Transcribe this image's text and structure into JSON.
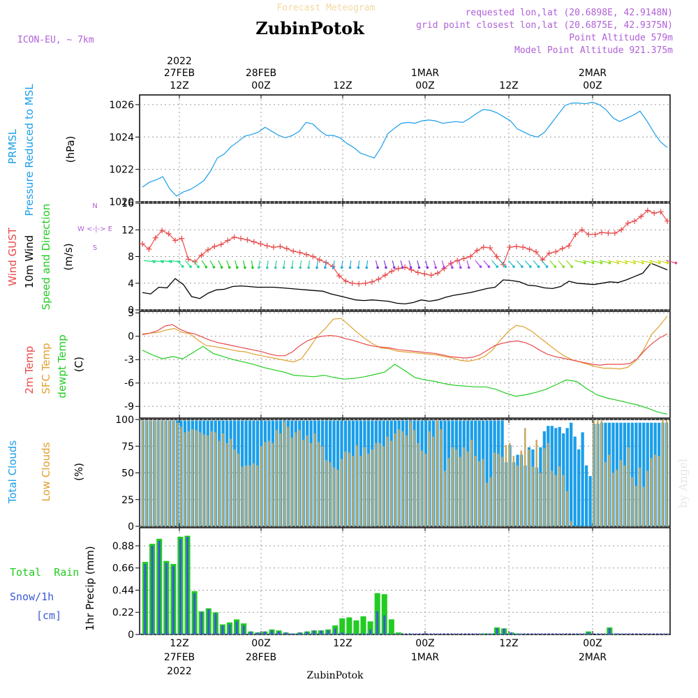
{
  "header": {
    "title_top": "Forecast Meteogram",
    "station": "ZubinPotok",
    "model": "ICON-EU, ~ 7km",
    "requested": "requested lon,lat (20.6898E, 42.9148N)",
    "closest": "grid point closest lon,lat (20.6875E, 42.9375N)",
    "point_alt": "Point Altitude 579m",
    "model_alt": "Model Point Altitude 921.375m",
    "footer": "ZubinPotok",
    "credit": "by Angel"
  },
  "time_axis": {
    "top_labels": [
      {
        "line0": "2022",
        "line1": "27FEB",
        "line2": "12Z"
      },
      {
        "line0": "",
        "line1": "28FEB",
        "line2": "00Z"
      },
      {
        "line0": "",
        "line1": "",
        "line2": "12Z"
      },
      {
        "line0": "",
        "line1": "1MAR",
        "line2": "00Z"
      },
      {
        "line0": "",
        "line1": "",
        "line2": "12Z"
      },
      {
        "line0": "",
        "line1": "2MAR",
        "line2": "00Z"
      }
    ],
    "bottom_labels": [
      {
        "line1": "12Z",
        "line2": "27FEB",
        "line3": "2022"
      },
      {
        "line1": "00Z",
        "line2": "28FEB",
        "line3": ""
      },
      {
        "line1": "12Z",
        "line2": "",
        "line3": ""
      },
      {
        "line1": "00Z",
        "line2": "1MAR",
        "line3": ""
      },
      {
        "line1": "12Z",
        "line2": "",
        "line3": ""
      },
      {
        "line1": "00Z",
        "line2": "2MAR",
        "line3": ""
      }
    ]
  },
  "panel_labels": {
    "pressure": {
      "a": "PRMSL",
      "b": "Pressure Reduced to MSL",
      "unit": "(hPa)"
    },
    "wind": {
      "a": "Wind GUST",
      "b": "10m Wind",
      "c": "Speed and Direction",
      "unit": "(m/s)",
      "compass": [
        "N",
        "S",
        "W <-|-> E"
      ]
    },
    "temp": {
      "a": "2m Temp",
      "b": "SFC Temp",
      "c": "dewpt Temp",
      "unit": "(C)"
    },
    "clouds": {
      "a": "Total Clouds",
      "b": "Low Clouds",
      "unit": "(%)"
    },
    "precip": {
      "a": "Total  Rain",
      "b": "Snow/1h",
      "c": "[cm]",
      "unit": "1hr Precip (mm)"
    }
  },
  "colors": {
    "pressure": "#1a9ee8",
    "gust": "#e84a4a",
    "wind": "#000000",
    "temp2m": "#e84a4a",
    "tsfc": "#e0a030",
    "dewpt": "#22cc22",
    "total_cloud": "#1a9ee8",
    "low_cloud": "#c8a860",
    "rain": "#22cc22",
    "snow": "#3a5ad8",
    "purple": "#b060d8"
  },
  "chart_data": [
    {
      "type": "line",
      "name": "pressure",
      "ylim": [
        1020,
        1026.6
      ],
      "yticks": [
        1020,
        1022,
        1024,
        1026
      ],
      "y": [
        1020.9,
        1021.2,
        1021.35,
        1021.55,
        1020.8,
        1020.35,
        1020.6,
        1020.75,
        1021.0,
        1021.3,
        1021.9,
        1022.7,
        1022.95,
        1023.4,
        1023.7,
        1024.05,
        1024.15,
        1024.3,
        1024.6,
        1024.35,
        1024.1,
        1023.95,
        1024.1,
        1024.35,
        1024.9,
        1024.8,
        1024.4,
        1024.1,
        1024.1,
        1023.95,
        1023.6,
        1023.35,
        1023.0,
        1022.85,
        1022.7,
        1023.35,
        1024.2,
        1024.55,
        1024.85,
        1024.9,
        1024.85,
        1025.0,
        1025.05,
        1025.0,
        1024.85,
        1024.9,
        1024.95,
        1024.9,
        1025.15,
        1025.45,
        1025.7,
        1025.65,
        1025.5,
        1025.25,
        1025.0,
        1024.5,
        1024.3,
        1024.1,
        1024.0,
        1024.3,
        1024.85,
        1025.4,
        1025.95,
        1026.1,
        1026.1,
        1026.05,
        1026.15,
        1026.0,
        1025.7,
        1025.2,
        1024.95,
        1025.15,
        1025.35,
        1025.6,
        1025.0,
        1024.3,
        1023.7,
        1023.35
      ]
    },
    {
      "type": "line",
      "name": "wind",
      "ylim": [
        0,
        16
      ],
      "yticks": [
        0,
        4,
        8,
        12,
        16
      ],
      "gust": [
        9.9,
        9.1,
        10.8,
        11.9,
        11.4,
        10.4,
        10.7,
        7.6,
        7.2,
        8.2,
        9.0,
        9.5,
        9.8,
        10.4,
        10.9,
        10.7,
        10.5,
        10.2,
        9.9,
        9.6,
        9.4,
        9.5,
        9.2,
        8.8,
        8.6,
        8.3,
        8.0,
        7.5,
        7.1,
        6.5,
        5.1,
        4.3,
        4.0,
        3.9,
        4.0,
        4.2,
        4.6,
        5.2,
        5.8,
        6.2,
        6.4,
        6.0,
        5.6,
        5.4,
        5.2,
        5.5,
        6.2,
        7.0,
        7.4,
        7.7,
        8.0,
        8.9,
        9.4,
        9.3,
        8.0,
        6.8,
        9.4,
        9.5,
        9.4,
        9.1,
        8.7,
        7.5,
        8.5,
        8.7,
        9.2,
        9.6,
        11.3,
        12.0,
        11.3,
        11.3,
        11.6,
        11.5,
        11.5,
        12.0,
        13.0,
        13.3,
        14.0,
        14.9,
        14.5,
        14.7,
        13.3
      ],
      "wind10m": [
        2.6,
        2.4,
        3.4,
        3.3,
        4.7,
        3.8,
        2.0,
        1.7,
        2.5,
        3.0,
        3.1,
        3.5,
        3.6,
        3.5,
        3.4,
        3.4,
        3.4,
        3.3,
        3.2,
        3.1,
        3.0,
        2.9,
        2.8,
        2.4,
        2.1,
        1.8,
        1.5,
        1.4,
        1.5,
        1.4,
        1.3,
        1.0,
        0.9,
        1.1,
        1.5,
        1.3,
        1.5,
        1.9,
        2.2,
        2.4,
        2.6,
        2.9,
        3.2,
        3.4,
        4.5,
        4.4,
        4.2,
        3.7,
        3.6,
        3.3,
        3.2,
        3.5,
        4.3,
        4.0,
        3.9,
        3.8,
        4.0,
        4.2,
        4.1,
        4.5,
        5.0,
        5.5,
        7.0,
        6.5,
        6.0
      ],
      "arrows": "wind barbs along ~7.5 m/s, multi-coloured"
    },
    {
      "type": "line",
      "name": "temperature",
      "ylim": [
        -10.5,
        3.2
      ],
      "yticks": [
        -9,
        -6,
        -3,
        0,
        3
      ],
      "t2m": [
        0.2,
        0.4,
        0.7,
        1.3,
        1.5,
        0.9,
        0.5,
        0.3,
        -0.1,
        -0.5,
        -0.8,
        -1.0,
        -1.2,
        -1.4,
        -1.6,
        -1.8,
        -2.0,
        -2.3,
        -2.5,
        -2.5,
        -2.0,
        -1.2,
        -0.6,
        -0.2,
        0.0,
        0.1,
        0.0,
        -0.3,
        -0.5,
        -0.8,
        -1.1,
        -1.3,
        -1.4,
        -1.5,
        -1.7,
        -1.8,
        -1.9,
        -2.0,
        -2.1,
        -2.2,
        -2.4,
        -2.6,
        -2.7,
        -2.8,
        -2.7,
        -2.4,
        -1.8,
        -1.2,
        -0.9,
        -0.7,
        -0.6,
        -0.8,
        -1.2,
        -1.8,
        -2.3,
        -2.6,
        -2.8,
        -3.0,
        -3.2,
        -3.4,
        -3.6,
        -3.7,
        -3.6,
        -3.6,
        -3.6,
        -3.5,
        -2.9,
        -1.8,
        -0.9,
        -0.2,
        0.3
      ],
      "tsfc": [
        0.3,
        0.4,
        0.5,
        0.8,
        1.0,
        0.5,
        0.3,
        -0.5,
        -1.2,
        -1.3,
        -1.5,
        -1.7,
        -1.9,
        -2.0,
        -2.3,
        -2.5,
        -2.7,
        -2.9,
        -3.1,
        -3.3,
        -2.9,
        -1.5,
        0.0,
        1.0,
        2.2,
        2.3,
        1.4,
        0.5,
        -0.3,
        -1.0,
        -1.5,
        -1.6,
        -1.9,
        -2.0,
        -2.1,
        -2.2,
        -2.3,
        -2.4,
        -2.6,
        -2.8,
        -3.1,
        -3.2,
        -3.0,
        -2.6,
        -1.8,
        -0.5,
        0.6,
        1.4,
        1.2,
        0.6,
        -0.2,
        -1.0,
        -1.8,
        -2.5,
        -3.0,
        -3.3,
        -3.6,
        -3.9,
        -4.1,
        -4.1,
        -4.2,
        -4.0,
        -3.2,
        -1.8,
        0.2,
        1.3,
        2.6
      ],
      "dewpt": [
        -1.8,
        -2.4,
        -2.9,
        -2.6,
        -2.9,
        -2.1,
        -1.3,
        -2.2,
        -2.6,
        -3.0,
        -3.3,
        -3.6,
        -4.0,
        -4.3,
        -4.6,
        -5.0,
        -5.1,
        -5.2,
        -5.0,
        -5.3,
        -5.5,
        -5.4,
        -5.2,
        -4.9,
        -4.6,
        -3.6,
        -4.4,
        -5.3,
        -5.6,
        -5.8,
        -6.1,
        -6.3,
        -6.4,
        -6.5,
        -6.5,
        -6.8,
        -7.3,
        -7.7,
        -7.5,
        -7.2,
        -6.8,
        -6.2,
        -5.6,
        -5.8,
        -6.7,
        -7.5,
        -7.9,
        -8.2,
        -8.5,
        -8.8,
        -9.2,
        -9.7,
        -10.0
      ],
      "yunit": "C"
    },
    {
      "type": "bar",
      "name": "clouds",
      "ylim": [
        0,
        100
      ],
      "yticks": [
        0,
        25,
        50,
        75,
        100
      ],
      "total": [
        99,
        99,
        99,
        99,
        99,
        99,
        99,
        99,
        99,
        99,
        99,
        99,
        99,
        99,
        99,
        99,
        99,
        99,
        99,
        99,
        99,
        99,
        99,
        99,
        99,
        99,
        99,
        99,
        99,
        99,
        99,
        99,
        99,
        99,
        99,
        99,
        99,
        99,
        99,
        99,
        99,
        99,
        99,
        99,
        99,
        99,
        99,
        99,
        99,
        99,
        99,
        99,
        99,
        99,
        99,
        99,
        99,
        99,
        99,
        99,
        99,
        99,
        99,
        99,
        99,
        99,
        99,
        99,
        99,
        99,
        99,
        99,
        99,
        99,
        99,
        99,
        99,
        99,
        99,
        99,
        99,
        99,
        99,
        99,
        99,
        99,
        99,
        99,
        99,
        99,
        99,
        99,
        99,
        99,
        99,
        60,
        76,
        60,
        67,
        67,
        57,
        74,
        72,
        55,
        74,
        89,
        94,
        94,
        92,
        93,
        87,
        92,
        97,
        84,
        72,
        88,
        57,
        47,
        96,
        96,
        97
      ],
      "low": [
        99,
        99,
        99,
        99,
        99,
        99,
        99,
        99,
        99,
        97,
        93,
        88,
        89,
        91,
        90,
        88,
        86,
        85,
        89,
        88,
        80,
        87,
        78,
        82,
        72,
        68,
        56,
        57,
        57,
        59,
        57,
        75,
        79,
        80,
        78,
        90,
        87,
        98,
        93,
        83,
        88,
        90,
        81,
        85,
        78,
        87,
        79,
        75,
        62,
        60,
        55,
        53,
        63,
        70,
        69,
        66,
        76,
        66,
        74,
        68,
        72,
        78,
        78,
        75,
        84,
        80,
        87,
        91,
        89,
        85,
        98,
        90,
        78,
        71,
        68,
        89,
        84,
        99,
        91,
        52,
        64,
        74,
        72,
        65,
        74,
        70,
        81,
        66,
        61,
        63,
        41,
        46,
        69,
        68,
        65,
        76,
        78,
        66,
        57,
        71,
        92,
        72,
        56,
        81,
        50,
        73,
        78,
        52,
        48,
        56,
        48,
        33,
        5,
        0,
        0,
        0,
        0,
        0,
        99,
        99,
        99,
        60,
        67,
        50,
        53,
        62,
        57,
        74,
        46,
        38,
        55,
        37,
        52,
        64,
        67,
        66,
        100,
        99
      ],
      "note": "bars at hourly steps; total clouds shown behind low clouds"
    },
    {
      "type": "bar",
      "name": "precip",
      "ylim": [
        0,
        1.06
      ],
      "yticks": [
        0,
        0.22,
        0.44,
        0.66,
        0.88
      ],
      "rain": [
        0.72,
        0.9,
        0.95,
        0.73,
        0.7,
        0.97,
        0.98,
        0.43,
        0.23,
        0.26,
        0.22,
        0.1,
        0.12,
        0.15,
        0.11,
        0.03,
        0.02,
        0.03,
        0.05,
        0.04,
        0.02,
        0.01,
        0.02,
        0.03,
        0.04,
        0.04,
        0.05,
        0.09,
        0.16,
        0.17,
        0.14,
        0.18,
        0.13,
        0.41,
        0.4,
        0.15,
        0.02,
        0,
        0,
        0,
        0,
        0,
        0,
        0,
        0,
        0,
        0,
        0,
        0.01,
        0.01,
        0.07,
        0.06,
        0.02,
        0.01,
        0,
        0,
        0,
        0,
        0,
        0,
        0,
        0,
        0,
        0.03,
        0,
        0,
        0.07,
        0.01,
        0,
        0,
        0,
        0,
        0,
        0,
        0
      ],
      "snow": [
        0.7,
        0.88,
        0.93,
        0.71,
        0.68,
        0.95,
        0.97,
        0.41,
        0.22,
        0.25,
        0.21,
        0.09,
        0.1,
        0.13,
        0.09,
        0.03,
        0.02,
        0.03,
        0.04,
        0.03,
        0.02,
        0.01,
        0.02,
        0.03,
        0.04,
        0.04,
        0.04,
        0.06,
        0.02,
        0.01,
        0.0,
        0.01,
        0.05,
        0.23,
        0.19,
        0.0,
        0.0,
        0,
        0,
        0,
        0,
        0,
        0,
        0,
        0,
        0,
        0,
        0,
        0.01,
        0.01,
        0.06,
        0.06,
        0.02,
        0.01,
        0,
        0,
        0,
        0,
        0,
        0,
        0,
        0,
        0,
        0.02,
        0,
        0,
        0.06,
        0.01,
        0,
        0,
        0,
        0,
        0,
        0,
        0
      ]
    }
  ]
}
